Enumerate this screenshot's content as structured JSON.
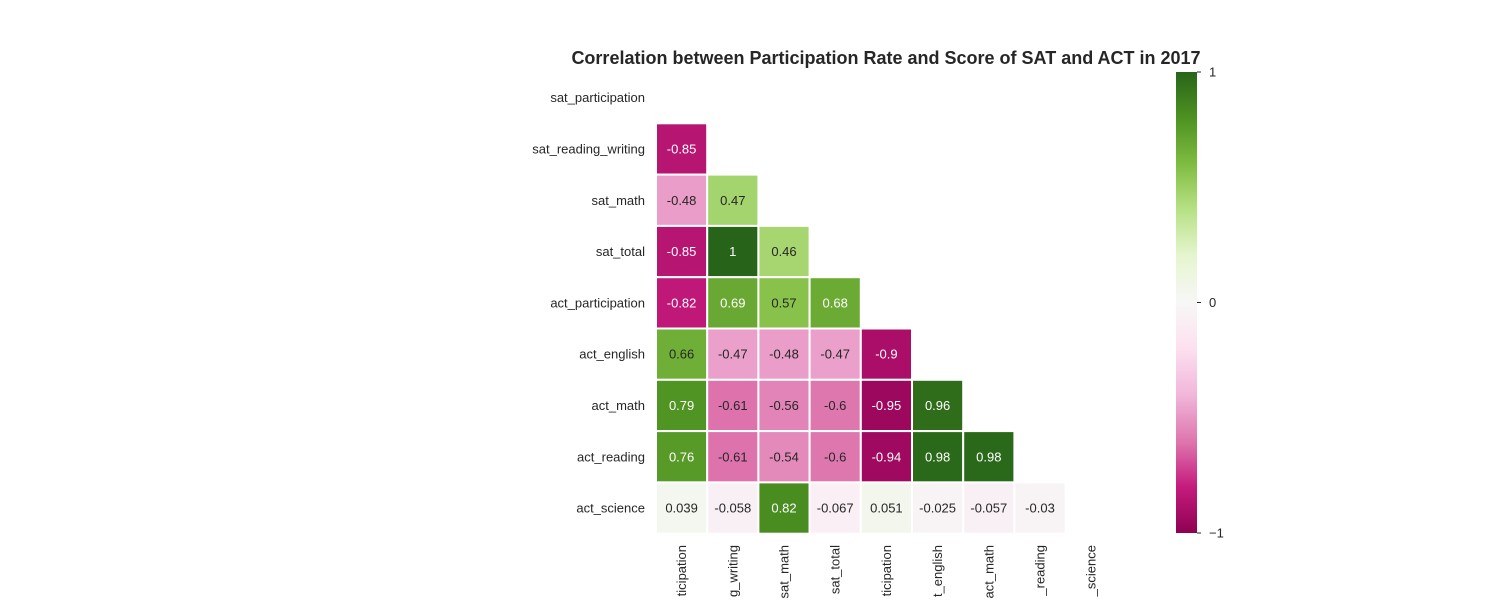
{
  "chart_data": {
    "type": "heatmap",
    "title": "Correlation between Participation Rate and Score of SAT and ACT in 2017",
    "row_labels": [
      "sat_participation",
      "sat_reading_writing",
      "sat_math",
      "sat_total",
      "act_participation",
      "act_english",
      "act_math",
      "act_reading",
      "act_science"
    ],
    "col_labels_visible": [
      "ticipation",
      "g_writing",
      "sat_math",
      "sat_total",
      "ticipation",
      "t_english",
      "act_math",
      "_reading",
      "_science"
    ],
    "mask": "upper-triangle-including-diagonal",
    "values": [
      [
        null,
        null,
        null,
        null,
        null,
        null,
        null,
        null,
        null
      ],
      [
        -0.85,
        null,
        null,
        null,
        null,
        null,
        null,
        null,
        null
      ],
      [
        -0.48,
        0.47,
        null,
        null,
        null,
        null,
        null,
        null,
        null
      ],
      [
        -0.85,
        1,
        0.46,
        null,
        null,
        null,
        null,
        null,
        null
      ],
      [
        -0.82,
        0.69,
        0.57,
        0.68,
        null,
        null,
        null,
        null,
        null
      ],
      [
        0.66,
        -0.47,
        -0.48,
        -0.47,
        -0.9,
        null,
        null,
        null,
        null
      ],
      [
        0.79,
        -0.61,
        -0.56,
        -0.6,
        -0.95,
        0.96,
        null,
        null,
        null
      ],
      [
        0.76,
        -0.61,
        -0.54,
        -0.6,
        -0.94,
        0.98,
        0.98,
        null,
        null
      ],
      [
        0.039,
        -0.058,
        0.82,
        -0.067,
        0.051,
        -0.025,
        -0.057,
        -0.03,
        null
      ]
    ],
    "value_labels": [
      [
        null,
        null,
        null,
        null,
        null,
        null,
        null,
        null,
        null
      ],
      [
        "-0.85",
        null,
        null,
        null,
        null,
        null,
        null,
        null,
        null
      ],
      [
        "-0.48",
        "0.47",
        null,
        null,
        null,
        null,
        null,
        null,
        null
      ],
      [
        "-0.85",
        "1",
        "0.46",
        null,
        null,
        null,
        null,
        null,
        null
      ],
      [
        "-0.82",
        "0.69",
        "0.57",
        "0.68",
        null,
        null,
        null,
        null,
        null
      ],
      [
        "0.66",
        "-0.47",
        "-0.48",
        "-0.47",
        "-0.9",
        null,
        null,
        null,
        null
      ],
      [
        "0.79",
        "-0.61",
        "-0.56",
        "-0.6",
        "-0.95",
        "0.96",
        null,
        null,
        null
      ],
      [
        "0.76",
        "-0.61",
        "-0.54",
        "-0.6",
        "-0.94",
        "0.98",
        "0.98",
        null,
        null
      ],
      [
        "0.039",
        "-0.058",
        "0.82",
        "-0.067",
        "0.051",
        "-0.025",
        "-0.057",
        "-0.03",
        null
      ]
    ],
    "colormap": "PiYG",
    "vmin": -1,
    "vmax": 1,
    "colorbar": {
      "ticks": [
        1,
        0,
        -1
      ],
      "tick_labels": [
        "1",
        "0",
        "−1"
      ]
    },
    "grid": false
  }
}
